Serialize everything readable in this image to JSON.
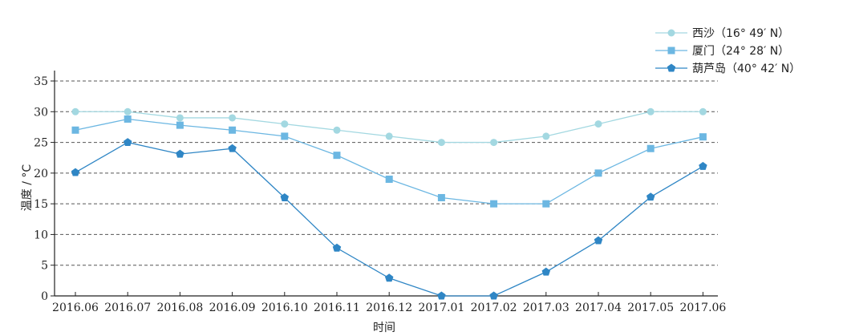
{
  "chart_data": {
    "type": "line",
    "xlabel": "时间",
    "ylabel": "温度 / °C",
    "ylim": [
      0,
      35
    ],
    "yticks": [
      0,
      5,
      10,
      15,
      20,
      25,
      30,
      35
    ],
    "grid": "horizontal dashed",
    "legend_position": "top-right",
    "categories": [
      "2016.06",
      "2016.07",
      "2016.08",
      "2016.09",
      "2016.10",
      "2016.11",
      "2016.12",
      "2017.01",
      "2017.02",
      "2017.03",
      "2017.04",
      "2017.05",
      "2017.06"
    ],
    "series": [
      {
        "name": "西沙（16°  49′  N）",
        "marker": "circle",
        "color": "#a3d8e1",
        "values": [
          30,
          30,
          29,
          29,
          28,
          27,
          26,
          25,
          25,
          26,
          28,
          30,
          30
        ]
      },
      {
        "name": "厦门（24°  28′  N）",
        "marker": "square",
        "color": "#6cb7e2",
        "values": [
          27,
          28.8,
          27.8,
          27,
          26,
          22.9,
          19,
          16,
          15,
          15,
          20,
          24,
          25.9
        ]
      },
      {
        "name": "葫芦岛（40°  42′  N）",
        "marker": "pentagon",
        "color": "#2f86c5",
        "values": [
          20.1,
          25,
          23.1,
          24,
          16,
          7.8,
          2.9,
          0,
          0,
          3.9,
          9,
          16.1,
          21.1
        ]
      }
    ]
  }
}
